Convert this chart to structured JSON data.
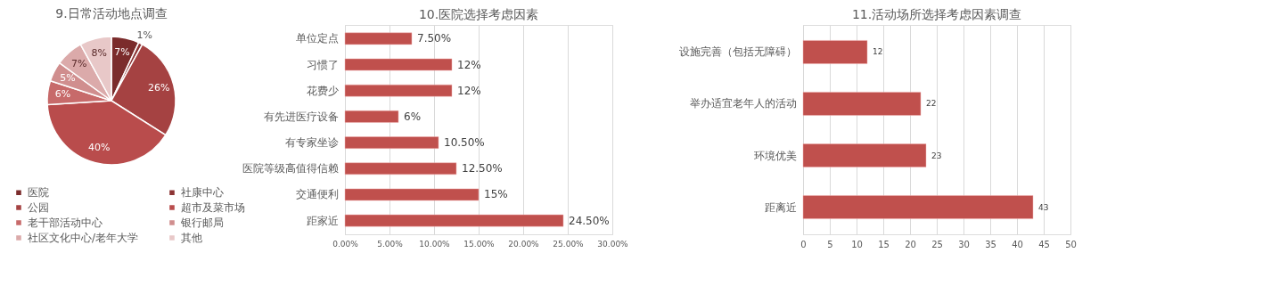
{
  "chart_data": [
    {
      "type": "pie",
      "title": "9.日常活动地点调查",
      "categories": [
        "医院",
        "社康中心",
        "公园",
        "超市及菜市场",
        "老干部活动中心",
        "银行邮局",
        "社区文化中心/老年大学",
        "其他"
      ],
      "values": [
        7,
        1,
        26,
        40,
        6,
        5,
        7,
        8
      ],
      "value_labels": [
        "7%",
        "1%",
        "26%",
        "40%",
        "6%",
        "5%",
        "7%",
        "8%"
      ],
      "colors": [
        "#7b2c2c",
        "#8c3434",
        "#a54242",
        "#b94c4c",
        "#c76a6a",
        "#d08e8e",
        "#dbaaaa",
        "#e8c8c8"
      ],
      "legend": "bottom"
    },
    {
      "type": "bar",
      "title": "10.医院选择考虑因素",
      "orientation": "horizontal",
      "categories": [
        "单位定点",
        "习惯了",
        "花费少",
        "有先进医疗设备",
        "有专家坐诊",
        "医院等级高值得信赖",
        "交通便利",
        "距家近"
      ],
      "values": [
        7.5,
        12,
        12,
        6,
        10.5,
        12.5,
        15,
        24.5
      ],
      "value_labels": [
        "7.50%",
        "12%",
        "12%",
        "6%",
        "10.50%",
        "12.50%",
        "15%",
        "24.50%"
      ],
      "color": "#c0504d",
      "xlim": [
        0,
        30
      ],
      "xticks": [
        {
          "value": 0,
          "label": "0.00%"
        },
        {
          "value": 5,
          "label": "5.00%"
        },
        {
          "value": 10,
          "label": "10.00%"
        },
        {
          "value": 15,
          "label": "15.00%"
        },
        {
          "value": 20,
          "label": "20.00%"
        },
        {
          "value": 25,
          "label": "25.00%"
        },
        {
          "value": 30,
          "label": "30.00%"
        }
      ],
      "grid": "x"
    },
    {
      "type": "bar",
      "title": "11.活动场所选择考虑因素调查",
      "orientation": "horizontal",
      "categories": [
        "设施完善（包括无障碍）",
        "举办适宜老年人的活动",
        "环境优美",
        "距离近"
      ],
      "values": [
        12,
        22,
        23,
        43
      ],
      "data_labels": true,
      "color": "#c0504d",
      "xlim": [
        0,
        50
      ],
      "xticks": [
        0,
        5,
        10,
        15,
        20,
        25,
        30,
        35,
        40,
        45,
        50
      ],
      "grid": "x"
    }
  ]
}
